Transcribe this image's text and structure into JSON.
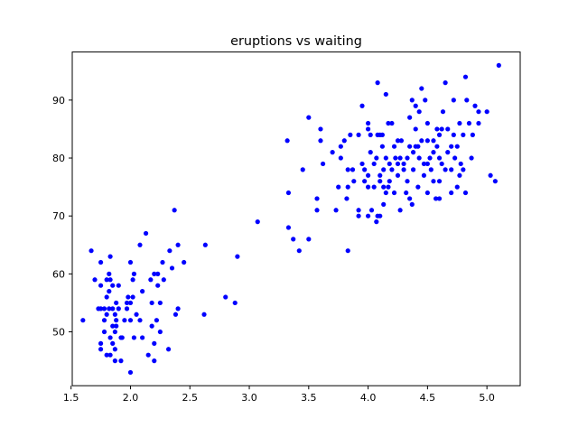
{
  "chart_data": {
    "type": "scatter",
    "title": "eruptions vs waiting",
    "xlabel": "",
    "ylabel": "",
    "xlim": [
      1.51,
      5.28
    ],
    "ylim": [
      40.7,
      98.3
    ],
    "xticks": [
      1.5,
      2.0,
      2.5,
      3.0,
      3.5,
      4.0,
      4.5,
      5.0
    ],
    "xtick_labels": [
      "1.5",
      "2.0",
      "2.5",
      "3.0",
      "3.5",
      "4.0",
      "4.5",
      "5.0"
    ],
    "yticks": [
      50,
      60,
      70,
      80,
      90
    ],
    "ytick_labels": [
      "50",
      "60",
      "70",
      "80",
      "90"
    ],
    "grid": false,
    "legend": "none",
    "marker_color": "#0000ff",
    "points": [
      [
        1.6,
        52
      ],
      [
        1.67,
        64
      ],
      [
        1.7,
        59
      ],
      [
        1.73,
        54
      ],
      [
        1.75,
        54
      ],
      [
        1.75,
        48
      ],
      [
        1.75,
        47
      ],
      [
        1.75,
        62
      ],
      [
        1.75,
        58
      ],
      [
        1.78,
        50
      ],
      [
        1.78,
        52
      ],
      [
        1.78,
        54
      ],
      [
        1.8,
        53
      ],
      [
        1.8,
        59
      ],
      [
        1.8,
        46
      ],
      [
        1.8,
        56
      ],
      [
        1.82,
        57
      ],
      [
        1.82,
        60
      ],
      [
        1.82,
        54
      ],
      [
        1.83,
        49
      ],
      [
        1.83,
        59
      ],
      [
        1.83,
        46
      ],
      [
        1.83,
        63
      ],
      [
        1.85,
        51
      ],
      [
        1.85,
        58
      ],
      [
        1.85,
        54
      ],
      [
        1.85,
        48
      ],
      [
        1.87,
        45
      ],
      [
        1.87,
        50
      ],
      [
        1.87,
        53
      ],
      [
        1.87,
        47
      ],
      [
        1.88,
        52
      ],
      [
        1.88,
        51
      ],
      [
        1.88,
        55
      ],
      [
        1.9,
        54
      ],
      [
        1.9,
        58
      ],
      [
        1.92,
        49
      ],
      [
        1.92,
        45
      ],
      [
        1.93,
        49
      ],
      [
        1.95,
        52
      ],
      [
        1.97,
        54
      ],
      [
        1.97,
        55
      ],
      [
        1.98,
        56
      ],
      [
        2.0,
        62
      ],
      [
        2.0,
        55
      ],
      [
        2.0,
        43
      ],
      [
        2.0,
        52
      ],
      [
        2.02,
        56
      ],
      [
        2.02,
        59
      ],
      [
        2.03,
        49
      ],
      [
        2.03,
        60
      ],
      [
        2.05,
        53
      ],
      [
        2.08,
        65
      ],
      [
        2.08,
        52
      ],
      [
        2.1,
        49
      ],
      [
        2.1,
        57
      ],
      [
        2.13,
        67
      ],
      [
        2.15,
        46
      ],
      [
        2.17,
        59
      ],
      [
        2.18,
        51
      ],
      [
        2.18,
        55
      ],
      [
        2.2,
        60
      ],
      [
        2.2,
        48
      ],
      [
        2.2,
        45
      ],
      [
        2.22,
        52
      ],
      [
        2.23,
        60
      ],
      [
        2.23,
        58
      ],
      [
        2.25,
        55
      ],
      [
        2.25,
        50
      ],
      [
        2.27,
        62
      ],
      [
        2.28,
        59
      ],
      [
        2.32,
        47
      ],
      [
        2.33,
        64
      ],
      [
        2.35,
        61
      ],
      [
        2.37,
        71
      ],
      [
        2.38,
        53
      ],
      [
        2.4,
        65
      ],
      [
        2.4,
        54
      ],
      [
        2.45,
        62
      ],
      [
        2.62,
        53
      ],
      [
        2.63,
        65
      ],
      [
        2.8,
        56
      ],
      [
        2.88,
        55
      ],
      [
        2.9,
        63
      ],
      [
        3.07,
        69
      ],
      [
        3.32,
        83
      ],
      [
        3.33,
        74
      ],
      [
        3.33,
        68
      ],
      [
        3.37,
        66
      ],
      [
        3.42,
        64
      ],
      [
        3.45,
        78
      ],
      [
        3.5,
        66
      ],
      [
        3.5,
        87
      ],
      [
        3.57,
        73
      ],
      [
        3.57,
        71
      ],
      [
        3.6,
        85
      ],
      [
        3.6,
        83
      ],
      [
        3.62,
        79
      ],
      [
        3.7,
        81
      ],
      [
        3.73,
        71
      ],
      [
        3.75,
        75
      ],
      [
        3.77,
        80
      ],
      [
        3.77,
        82
      ],
      [
        3.8,
        83
      ],
      [
        3.82,
        73
      ],
      [
        3.83,
        75
      ],
      [
        3.83,
        78
      ],
      [
        3.83,
        64
      ],
      [
        3.85,
        84
      ],
      [
        3.87,
        78
      ],
      [
        3.88,
        76
      ],
      [
        3.92,
        84
      ],
      [
        3.92,
        70
      ],
      [
        3.92,
        71
      ],
      [
        3.95,
        79
      ],
      [
        3.95,
        89
      ],
      [
        3.97,
        76
      ],
      [
        3.97,
        78
      ],
      [
        4.0,
        77
      ],
      [
        4.0,
        70
      ],
      [
        4.0,
        75
      ],
      [
        4.0,
        86
      ],
      [
        4.0,
        85
      ],
      [
        4.02,
        84
      ],
      [
        4.02,
        81
      ],
      [
        4.03,
        71
      ],
      [
        4.05,
        79
      ],
      [
        4.05,
        75
      ],
      [
        4.07,
        80
      ],
      [
        4.07,
        69
      ],
      [
        4.08,
        93
      ],
      [
        4.08,
        84
      ],
      [
        4.08,
        70
      ],
      [
        4.1,
        84
      ],
      [
        4.1,
        77
      ],
      [
        4.1,
        76
      ],
      [
        4.1,
        70
      ],
      [
        4.12,
        84
      ],
      [
        4.12,
        82
      ],
      [
        4.13,
        78
      ],
      [
        4.13,
        75
      ],
      [
        4.13,
        72
      ],
      [
        4.15,
        91
      ],
      [
        4.15,
        80
      ],
      [
        4.15,
        74
      ],
      [
        4.17,
        86
      ],
      [
        4.17,
        75
      ],
      [
        4.18,
        79
      ],
      [
        4.18,
        76
      ],
      [
        4.2,
        86
      ],
      [
        4.2,
        78
      ],
      [
        4.22,
        82
      ],
      [
        4.22,
        74
      ],
      [
        4.23,
        80
      ],
      [
        4.25,
        83
      ],
      [
        4.25,
        79
      ],
      [
        4.25,
        77
      ],
      [
        4.27,
        80
      ],
      [
        4.27,
        71
      ],
      [
        4.28,
        83
      ],
      [
        4.3,
        79
      ],
      [
        4.3,
        78
      ],
      [
        4.32,
        74
      ],
      [
        4.33,
        80
      ],
      [
        4.33,
        76
      ],
      [
        4.35,
        87
      ],
      [
        4.35,
        82
      ],
      [
        4.35,
        73
      ],
      [
        4.37,
        72
      ],
      [
        4.37,
        90
      ],
      [
        4.38,
        81
      ],
      [
        4.38,
        78
      ],
      [
        4.4,
        82
      ],
      [
        4.4,
        85
      ],
      [
        4.4,
        89
      ],
      [
        4.42,
        82
      ],
      [
        4.42,
        75
      ],
      [
        4.43,
        88
      ],
      [
        4.43,
        80
      ],
      [
        4.45,
        92
      ],
      [
        4.45,
        83
      ],
      [
        4.47,
        79
      ],
      [
        4.47,
        77
      ],
      [
        4.48,
        90
      ],
      [
        4.5,
        86
      ],
      [
        4.5,
        83
      ],
      [
        4.5,
        79
      ],
      [
        4.5,
        74
      ],
      [
        4.52,
        80
      ],
      [
        4.53,
        78
      ],
      [
        4.55,
        76
      ],
      [
        4.55,
        83
      ],
      [
        4.55,
        81
      ],
      [
        4.57,
        73
      ],
      [
        4.58,
        82
      ],
      [
        4.58,
        85
      ],
      [
        4.6,
        84
      ],
      [
        4.6,
        80
      ],
      [
        4.6,
        76
      ],
      [
        4.6,
        73
      ],
      [
        4.62,
        79
      ],
      [
        4.62,
        85
      ],
      [
        4.63,
        88
      ],
      [
        4.65,
        78
      ],
      [
        4.65,
        93
      ],
      [
        4.67,
        85
      ],
      [
        4.67,
        81
      ],
      [
        4.7,
        78
      ],
      [
        4.7,
        74
      ],
      [
        4.7,
        82
      ],
      [
        4.72,
        84
      ],
      [
        4.72,
        90
      ],
      [
        4.73,
        80
      ],
      [
        4.75,
        75
      ],
      [
        4.75,
        82
      ],
      [
        4.77,
        77
      ],
      [
        4.77,
        86
      ],
      [
        4.78,
        79
      ],
      [
        4.8,
        84
      ],
      [
        4.8,
        78
      ],
      [
        4.82,
        94
      ],
      [
        4.82,
        74
      ],
      [
        4.83,
        90
      ],
      [
        4.85,
        86
      ],
      [
        4.87,
        80
      ],
      [
        4.88,
        84
      ],
      [
        4.9,
        89
      ],
      [
        4.93,
        86
      ],
      [
        4.93,
        88
      ],
      [
        5.0,
        88
      ],
      [
        5.03,
        77
      ],
      [
        5.07,
        76
      ],
      [
        5.1,
        96
      ]
    ]
  }
}
